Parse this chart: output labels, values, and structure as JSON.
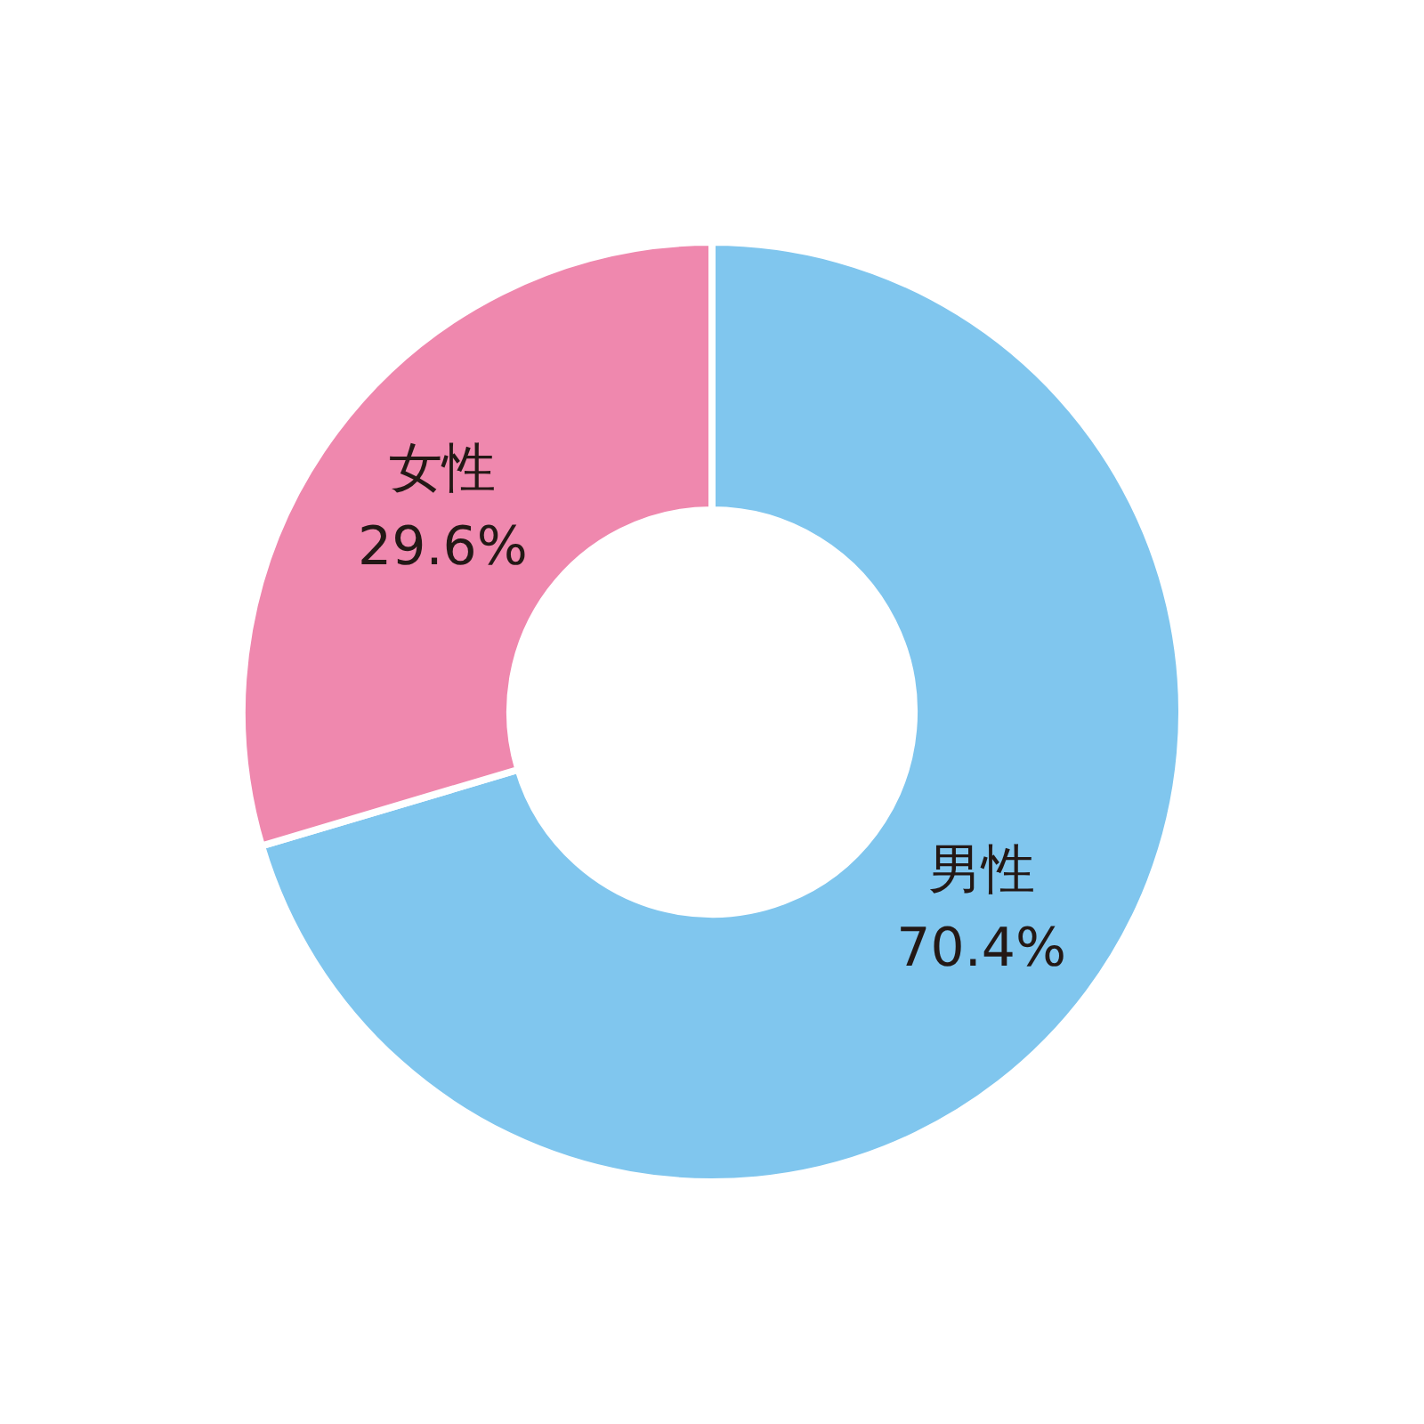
{
  "chart_data": {
    "type": "donut",
    "categories": [
      "男性",
      "女性"
    ],
    "values": [
      70.4,
      29.6
    ],
    "colors": [
      "#80c6ee",
      "#ef88ae"
    ],
    "value_labels": [
      "70.4%",
      "29.6%"
    ],
    "legend": false
  }
}
